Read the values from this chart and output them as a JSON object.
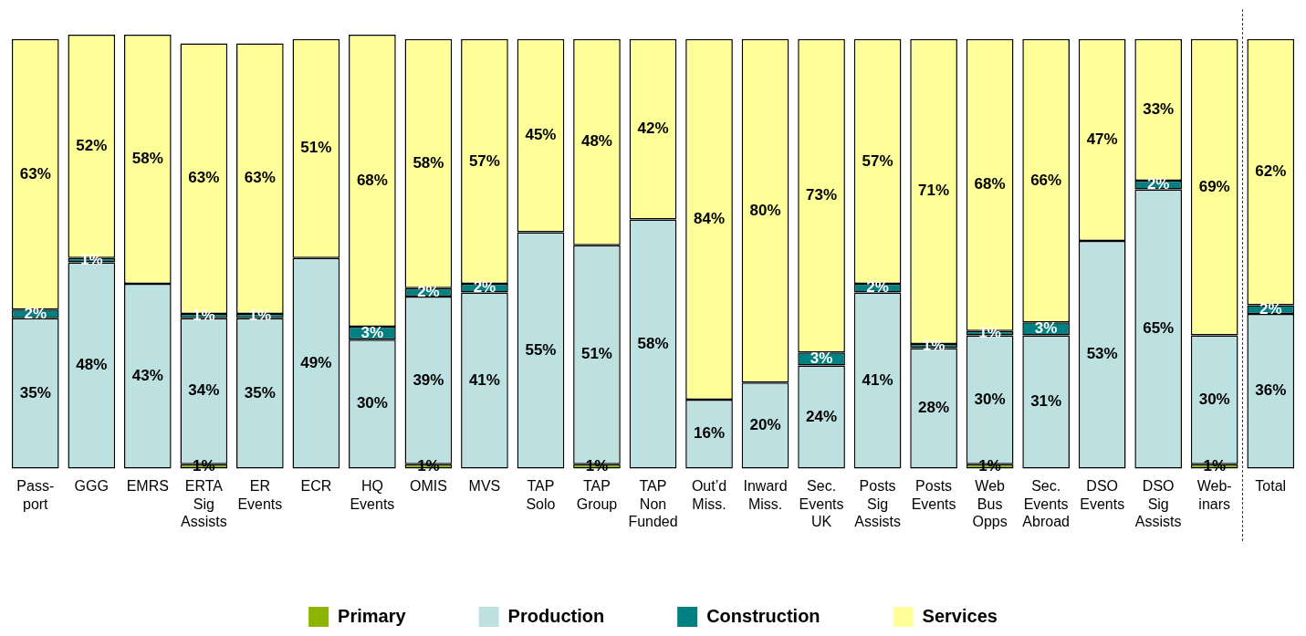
{
  "chart_data": {
    "type": "bar",
    "stacked": true,
    "legend": "bottom",
    "categories": [
      "Pass-port",
      "GGG",
      "EMRS",
      "ERTA Sig Assists",
      "ER Events",
      "ECR",
      "HQ Events",
      "OMIS",
      "MVS",
      "TAP Solo",
      "TAP Group",
      "TAP Non Funded",
      "Out’d Miss.",
      "Inward Miss.",
      "Sec. Events UK",
      "Posts Sig Assists",
      "Posts Events",
      "Web Bus Opps",
      "Sec. Events Abroad",
      "DSO Events",
      "DSO Sig Assists",
      "Web-inars",
      "Total"
    ],
    "series": [
      {
        "name": "Primary",
        "color": "#8cb400",
        "values": [
          null,
          null,
          null,
          1,
          null,
          null,
          null,
          1,
          null,
          null,
          1,
          null,
          null,
          null,
          null,
          null,
          null,
          1,
          null,
          null,
          null,
          1,
          null
        ],
        "value_labels": [
          null,
          null,
          null,
          "1%",
          null,
          null,
          null,
          "1%",
          null,
          null,
          "1%",
          null,
          null,
          null,
          null,
          null,
          null,
          "1%",
          null,
          null,
          null,
          "1%",
          null
        ]
      },
      {
        "name": "Production",
        "color": "#bde0e0",
        "values": [
          35,
          48,
          43,
          34,
          35,
          49,
          30,
          39,
          41,
          55,
          51,
          58,
          16,
          20,
          24,
          41,
          28,
          30,
          31,
          53,
          65,
          30,
          36
        ],
        "value_labels": [
          "35%",
          "48%",
          "43%",
          "34%",
          "35%",
          "49%",
          "30%",
          "39%",
          "41%",
          "55%",
          "51%",
          "58%",
          "16%",
          "20%",
          "24%",
          "41%",
          "28%",
          "30%",
          "31%",
          "53%",
          "65%",
          "30%",
          "36%"
        ]
      },
      {
        "name": "Construction",
        "color": "#008080",
        "values": [
          2,
          1,
          null,
          1,
          1,
          null,
          3,
          2,
          2,
          null,
          null,
          null,
          null,
          null,
          3,
          2,
          1,
          1,
          3,
          null,
          2,
          null,
          2
        ],
        "value_labels": [
          "2%",
          "1%",
          null,
          "1%",
          "1%",
          null,
          "3%",
          "2%",
          "2%",
          null,
          null,
          null,
          null,
          null,
          "3%",
          "2%",
          "1%",
          "1%",
          "3%",
          null,
          "2%",
          null,
          "2%"
        ]
      },
      {
        "name": "Services",
        "color": "#ffff99",
        "values": [
          63,
          52,
          58,
          63,
          63,
          51,
          68,
          58,
          57,
          45,
          48,
          42,
          84,
          80,
          73,
          57,
          71,
          68,
          66,
          47,
          33,
          69,
          62
        ],
        "value_labels": [
          "63%",
          "52%",
          "58%",
          "63%",
          "63%",
          "51%",
          "68%",
          "58%",
          "57%",
          "45%",
          "48%",
          "42%",
          "84%",
          "80%",
          "73%",
          "57%",
          "71%",
          "68%",
          "66%",
          "47%",
          "33%",
          "69%",
          "62%"
        ]
      }
    ]
  }
}
